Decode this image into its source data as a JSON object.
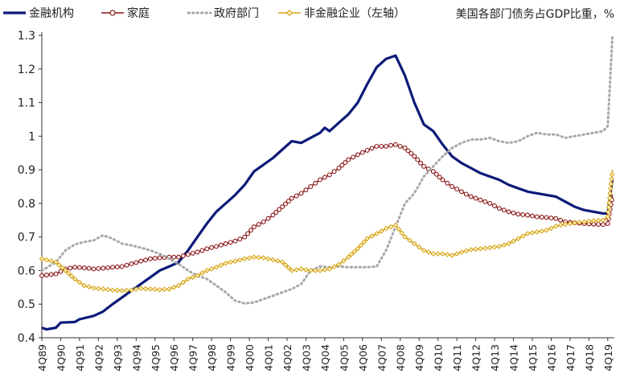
{
  "chart_data": {
    "type": "line",
    "title": "",
    "annotation": "美国各部门债务占GDP比重，%",
    "xlabel": "",
    "ylabel": "",
    "ylim": [
      0.4,
      1.3
    ],
    "yticks": [
      "0.4",
      "0.5",
      "0.6",
      "0.7",
      "0.8",
      "0.9",
      "1",
      "1.1",
      "1.2",
      "1.3"
    ],
    "grid": false,
    "legend_position": "top",
    "x_labels": [
      "4Q89",
      "4Q90",
      "4Q91",
      "4Q92",
      "4Q93",
      "4Q94",
      "4Q95",
      "4Q96",
      "4Q97",
      "4Q98",
      "4Q99",
      "4Q00",
      "4Q01",
      "4Q02",
      "4Q03",
      "4Q04",
      "4Q05",
      "4Q06",
      "4Q07",
      "4Q08",
      "4Q09",
      "4Q10",
      "4Q11",
      "4Q12",
      "4Q13",
      "4Q14",
      "4Q15",
      "4Q16",
      "4Q17",
      "4Q18",
      "4Q19"
    ],
    "series": [
      {
        "name": "金融机构",
        "color": "#0d1a78",
        "style": "solid",
        "values": [
          [
            1989.75,
            0.43
          ],
          [
            1990.0,
            0.425
          ],
          [
            1990.5,
            0.43
          ],
          [
            1990.75,
            0.445
          ],
          [
            1991.5,
            0.447
          ],
          [
            1991.75,
            0.455
          ],
          [
            1992.5,
            0.465
          ],
          [
            1993.0,
            0.478
          ],
          [
            1993.5,
            0.5
          ],
          [
            1994.0,
            0.52
          ],
          [
            1994.5,
            0.54
          ],
          [
            1995.0,
            0.56
          ],
          [
            1995.5,
            0.58
          ],
          [
            1996.0,
            0.6
          ],
          [
            1996.5,
            0.612
          ],
          [
            1997.0,
            0.625
          ],
          [
            1997.5,
            0.66
          ],
          [
            1998.0,
            0.7
          ],
          [
            1998.5,
            0.74
          ],
          [
            1999.0,
            0.775
          ],
          [
            1999.5,
            0.8
          ],
          [
            2000.0,
            0.825
          ],
          [
            2000.5,
            0.855
          ],
          [
            2001.0,
            0.895
          ],
          [
            2001.5,
            0.915
          ],
          [
            2002.0,
            0.935
          ],
          [
            2002.5,
            0.96
          ],
          [
            2003.0,
            0.985
          ],
          [
            2003.5,
            0.98
          ],
          [
            2004.0,
            0.995
          ],
          [
            2004.5,
            1.01
          ],
          [
            2004.75,
            1.025
          ],
          [
            2005.0,
            1.015
          ],
          [
            2005.5,
            1.04
          ],
          [
            2006.0,
            1.065
          ],
          [
            2006.5,
            1.1
          ],
          [
            2007.0,
            1.155
          ],
          [
            2007.5,
            1.205
          ],
          [
            2008.0,
            1.23
          ],
          [
            2008.5,
            1.24
          ],
          [
            2009.0,
            1.18
          ],
          [
            2009.5,
            1.1
          ],
          [
            2010.0,
            1.035
          ],
          [
            2010.5,
            1.015
          ],
          [
            2011.0,
            0.975
          ],
          [
            2011.5,
            0.94
          ],
          [
            2012.0,
            0.92
          ],
          [
            2012.5,
            0.905
          ],
          [
            2013.0,
            0.89
          ],
          [
            2013.5,
            0.88
          ],
          [
            2014.0,
            0.87
          ],
          [
            2014.5,
            0.855
          ],
          [
            2015.0,
            0.845
          ],
          [
            2015.5,
            0.835
          ],
          [
            2016.0,
            0.83
          ],
          [
            2016.5,
            0.825
          ],
          [
            2017.0,
            0.82
          ],
          [
            2017.5,
            0.805
          ],
          [
            2018.0,
            0.79
          ],
          [
            2018.5,
            0.78
          ],
          [
            2019.0,
            0.775
          ],
          [
            2019.5,
            0.77
          ],
          [
            2019.75,
            0.77
          ],
          [
            2020.0,
            0.875
          ]
        ]
      },
      {
        "name": "家庭",
        "color": "#8b1414",
        "style": "solid-circle",
        "values": [
          [
            1989.75,
            0.585
          ],
          [
            1990.5,
            0.59
          ],
          [
            1991.0,
            0.605
          ],
          [
            1991.5,
            0.61
          ],
          [
            1992.0,
            0.608
          ],
          [
            1992.5,
            0.605
          ],
          [
            1993.0,
            0.607
          ],
          [
            1993.5,
            0.61
          ],
          [
            1994.0,
            0.612
          ],
          [
            1994.5,
            0.62
          ],
          [
            1995.0,
            0.628
          ],
          [
            1995.5,
            0.635
          ],
          [
            1996.0,
            0.638
          ],
          [
            1996.5,
            0.64
          ],
          [
            1997.0,
            0.64
          ],
          [
            1997.5,
            0.648
          ],
          [
            1998.0,
            0.655
          ],
          [
            1998.5,
            0.665
          ],
          [
            1999.0,
            0.672
          ],
          [
            1999.5,
            0.68
          ],
          [
            2000.0,
            0.688
          ],
          [
            2000.5,
            0.7
          ],
          [
            2001.0,
            0.73
          ],
          [
            2001.5,
            0.745
          ],
          [
            2002.0,
            0.765
          ],
          [
            2002.5,
            0.79
          ],
          [
            2003.0,
            0.815
          ],
          [
            2003.5,
            0.83
          ],
          [
            2004.0,
            0.85
          ],
          [
            2004.5,
            0.87
          ],
          [
            2005.0,
            0.885
          ],
          [
            2005.5,
            0.905
          ],
          [
            2006.0,
            0.93
          ],
          [
            2006.5,
            0.945
          ],
          [
            2007.0,
            0.958
          ],
          [
            2007.5,
            0.97
          ],
          [
            2008.0,
            0.97
          ],
          [
            2008.5,
            0.975
          ],
          [
            2009.0,
            0.965
          ],
          [
            2009.5,
            0.94
          ],
          [
            2010.0,
            0.91
          ],
          [
            2010.5,
            0.895
          ],
          [
            2011.0,
            0.87
          ],
          [
            2011.5,
            0.85
          ],
          [
            2012.0,
            0.835
          ],
          [
            2012.5,
            0.82
          ],
          [
            2013.0,
            0.81
          ],
          [
            2013.5,
            0.8
          ],
          [
            2014.0,
            0.785
          ],
          [
            2014.5,
            0.775
          ],
          [
            2015.0,
            0.768
          ],
          [
            2015.5,
            0.765
          ],
          [
            2016.0,
            0.76
          ],
          [
            2016.5,
            0.758
          ],
          [
            2017.0,
            0.755
          ],
          [
            2017.5,
            0.745
          ],
          [
            2018.0,
            0.742
          ],
          [
            2018.5,
            0.74
          ],
          [
            2019.0,
            0.738
          ],
          [
            2019.5,
            0.737
          ],
          [
            2019.75,
            0.74
          ],
          [
            2020.0,
            0.825
          ]
        ]
      },
      {
        "name": "政府部门",
        "color": "#a8a8a8",
        "style": "dotted",
        "values": [
          [
            1989.75,
            0.6
          ],
          [
            1990.5,
            0.625
          ],
          [
            1991.0,
            0.66
          ],
          [
            1991.5,
            0.678
          ],
          [
            1992.0,
            0.685
          ],
          [
            1992.5,
            0.69
          ],
          [
            1993.0,
            0.705
          ],
          [
            1993.5,
            0.695
          ],
          [
            1994.0,
            0.68
          ],
          [
            1994.5,
            0.675
          ],
          [
            1995.0,
            0.668
          ],
          [
            1995.5,
            0.66
          ],
          [
            1996.0,
            0.65
          ],
          [
            1996.5,
            0.635
          ],
          [
            1997.0,
            0.62
          ],
          [
            1997.5,
            0.6
          ],
          [
            1998.0,
            0.585
          ],
          [
            1998.5,
            0.575
          ],
          [
            1999.0,
            0.555
          ],
          [
            1999.5,
            0.535
          ],
          [
            2000.0,
            0.51
          ],
          [
            2000.5,
            0.502
          ],
          [
            2001.0,
            0.505
          ],
          [
            2001.5,
            0.515
          ],
          [
            2002.0,
            0.525
          ],
          [
            2002.5,
            0.535
          ],
          [
            2003.0,
            0.545
          ],
          [
            2003.5,
            0.56
          ],
          [
            2004.0,
            0.6
          ],
          [
            2004.5,
            0.612
          ],
          [
            2005.0,
            0.61
          ],
          [
            2005.5,
            0.612
          ],
          [
            2006.0,
            0.61
          ],
          [
            2006.5,
            0.61
          ],
          [
            2007.0,
            0.61
          ],
          [
            2007.5,
            0.612
          ],
          [
            2008.0,
            0.66
          ],
          [
            2008.5,
            0.73
          ],
          [
            2009.0,
            0.8
          ],
          [
            2009.5,
            0.83
          ],
          [
            2010.0,
            0.88
          ],
          [
            2010.5,
            0.91
          ],
          [
            2011.0,
            0.94
          ],
          [
            2011.5,
            0.965
          ],
          [
            2012.0,
            0.98
          ],
          [
            2012.5,
            0.99
          ],
          [
            2013.0,
            0.99
          ],
          [
            2013.5,
            0.995
          ],
          [
            2014.0,
            0.985
          ],
          [
            2014.5,
            0.98
          ],
          [
            2015.0,
            0.985
          ],
          [
            2015.5,
            1.0
          ],
          [
            2016.0,
            1.01
          ],
          [
            2016.5,
            1.005
          ],
          [
            2017.0,
            1.005
          ],
          [
            2017.5,
            0.995
          ],
          [
            2018.0,
            1.0
          ],
          [
            2018.5,
            1.005
          ],
          [
            2019.0,
            1.01
          ],
          [
            2019.5,
            1.015
          ],
          [
            2019.75,
            1.03
          ],
          [
            2020.0,
            1.3
          ]
        ]
      },
      {
        "name": "非金融企业（左轴）",
        "color": "#d4a216",
        "style": "solid-diamond",
        "values": [
          [
            1989.75,
            0.635
          ],
          [
            1990.5,
            0.625
          ],
          [
            1991.0,
            0.6
          ],
          [
            1991.5,
            0.575
          ],
          [
            1992.0,
            0.555
          ],
          [
            1992.5,
            0.548
          ],
          [
            1993.0,
            0.545
          ],
          [
            1993.5,
            0.542
          ],
          [
            1994.0,
            0.54
          ],
          [
            1994.5,
            0.542
          ],
          [
            1995.0,
            0.547
          ],
          [
            1995.5,
            0.545
          ],
          [
            1996.0,
            0.543
          ],
          [
            1996.5,
            0.545
          ],
          [
            1997.0,
            0.555
          ],
          [
            1997.5,
            0.575
          ],
          [
            1998.0,
            0.585
          ],
          [
            1998.5,
            0.6
          ],
          [
            1999.0,
            0.61
          ],
          [
            1999.5,
            0.622
          ],
          [
            2000.0,
            0.628
          ],
          [
            2000.5,
            0.635
          ],
          [
            2001.0,
            0.64
          ],
          [
            2001.5,
            0.638
          ],
          [
            2002.0,
            0.632
          ],
          [
            2002.5,
            0.625
          ],
          [
            2003.0,
            0.6
          ],
          [
            2003.5,
            0.605
          ],
          [
            2004.0,
            0.6
          ],
          [
            2004.5,
            0.6
          ],
          [
            2005.0,
            0.605
          ],
          [
            2005.5,
            0.618
          ],
          [
            2006.0,
            0.64
          ],
          [
            2006.5,
            0.665
          ],
          [
            2007.0,
            0.695
          ],
          [
            2007.5,
            0.71
          ],
          [
            2008.0,
            0.725
          ],
          [
            2008.5,
            0.735
          ],
          [
            2009.0,
            0.7
          ],
          [
            2009.5,
            0.68
          ],
          [
            2010.0,
            0.66
          ],
          [
            2010.5,
            0.65
          ],
          [
            2011.0,
            0.65
          ],
          [
            2011.5,
            0.645
          ],
          [
            2012.0,
            0.655
          ],
          [
            2012.5,
            0.662
          ],
          [
            2013.0,
            0.665
          ],
          [
            2013.5,
            0.668
          ],
          [
            2014.0,
            0.672
          ],
          [
            2014.5,
            0.68
          ],
          [
            2015.0,
            0.695
          ],
          [
            2015.5,
            0.71
          ],
          [
            2016.0,
            0.715
          ],
          [
            2016.5,
            0.72
          ],
          [
            2017.0,
            0.732
          ],
          [
            2017.5,
            0.738
          ],
          [
            2018.0,
            0.742
          ],
          [
            2018.5,
            0.745
          ],
          [
            2019.0,
            0.748
          ],
          [
            2019.5,
            0.75
          ],
          [
            2019.75,
            0.76
          ],
          [
            2020.0,
            0.9
          ]
        ]
      }
    ]
  }
}
